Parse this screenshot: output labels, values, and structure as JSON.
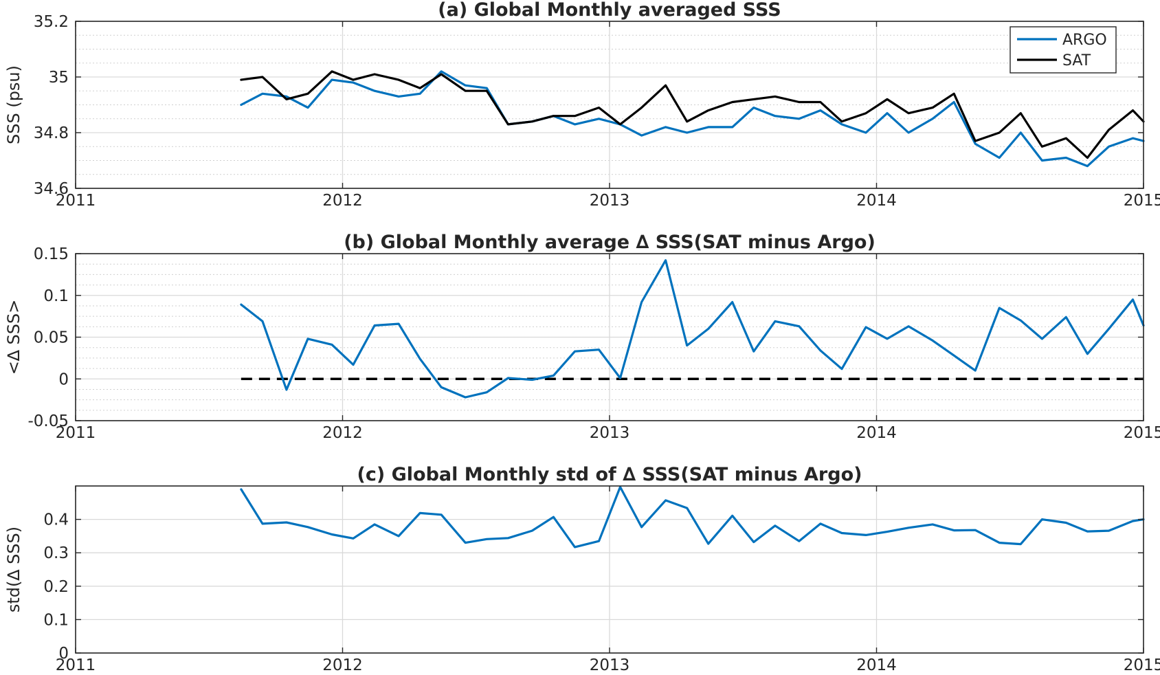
{
  "chart_data": [
    {
      "type": "line",
      "title": "(a) Global Monthly averaged SSS",
      "xlabel": "",
      "ylabel": "SSS (psu)",
      "xlim": [
        2011,
        2015
      ],
      "ylim": [
        34.6,
        35.2
      ],
      "xticks": [
        2011,
        2012,
        2013,
        2014,
        2015
      ],
      "xtick_labels": [
        "2011",
        "2012",
        "2013",
        "2014",
        "2015"
      ],
      "yticks": [
        34.6,
        34.8,
        35,
        35.2
      ],
      "ytick_labels": [
        "34.6",
        "34.8",
        "35",
        "35.2"
      ],
      "grid": true,
      "legend_position": "top-right",
      "x": [
        2011.62,
        2011.7,
        2011.79,
        2011.87,
        2011.96,
        2012.04,
        2012.12,
        2012.21,
        2012.29,
        2012.37,
        2012.46,
        2012.54,
        2012.62,
        2012.71,
        2012.79,
        2012.87,
        2012.96,
        2013.04,
        2013.12,
        2013.21,
        2013.29,
        2013.37,
        2013.46,
        2013.54,
        2013.62,
        2013.71,
        2013.79,
        2013.87,
        2013.96,
        2014.04,
        2014.12,
        2014.21,
        2014.29,
        2014.37,
        2014.46,
        2014.54,
        2014.62,
        2014.71,
        2014.79,
        2014.87,
        2014.96,
        2015.0
      ],
      "series": [
        {
          "name": "ARGO",
          "color": "#0072BD",
          "values": [
            34.9,
            34.94,
            34.93,
            34.89,
            34.99,
            34.98,
            34.95,
            34.93,
            34.94,
            35.02,
            34.97,
            34.96,
            34.83,
            34.84,
            34.86,
            34.83,
            34.85,
            34.83,
            34.79,
            34.82,
            34.8,
            34.82,
            34.82,
            34.89,
            34.86,
            34.85,
            34.88,
            34.83,
            34.8,
            34.87,
            34.8,
            34.85,
            34.91,
            34.76,
            34.71,
            34.8,
            34.7,
            34.71,
            34.68,
            34.75,
            34.78,
            34.77
          ]
        },
        {
          "name": "SAT",
          "color": "#000000",
          "values": [
            34.99,
            35.0,
            34.92,
            34.94,
            35.02,
            34.99,
            35.01,
            34.99,
            34.96,
            35.01,
            34.95,
            34.95,
            34.83,
            34.84,
            34.86,
            34.86,
            34.89,
            34.83,
            34.89,
            34.97,
            34.84,
            34.88,
            34.91,
            34.92,
            34.93,
            34.91,
            34.91,
            34.84,
            34.87,
            34.92,
            34.87,
            34.89,
            34.94,
            34.77,
            34.8,
            34.87,
            34.75,
            34.78,
            34.71,
            34.81,
            34.88,
            34.84
          ]
        }
      ]
    },
    {
      "type": "line",
      "title": "(b) Global Monthly average ∆ SSS(SAT minus Argo)",
      "xlabel": "",
      "ylabel": "<∆ SSS>",
      "xlim": [
        2011,
        2015
      ],
      "ylim": [
        -0.05,
        0.15
      ],
      "xticks": [
        2011,
        2012,
        2013,
        2014,
        2015
      ],
      "xtick_labels": [
        "2011",
        "2012",
        "2013",
        "2014",
        "2015"
      ],
      "yticks": [
        -0.05,
        0,
        0.05,
        0.1,
        0.15
      ],
      "ytick_labels": [
        "-0.05",
        "0",
        "0.05",
        "0.1",
        "0.15"
      ],
      "grid": true,
      "zero_line": {
        "y": 0,
        "x_start": 2011.62,
        "x_end": 2015.0,
        "color": "#000000",
        "style": "dashed"
      },
      "x": [
        2011.62,
        2011.7,
        2011.79,
        2011.87,
        2011.96,
        2012.04,
        2012.12,
        2012.21,
        2012.29,
        2012.37,
        2012.46,
        2012.54,
        2012.62,
        2012.71,
        2012.79,
        2012.87,
        2012.96,
        2013.04,
        2013.12,
        2013.21,
        2013.29,
        2013.37,
        2013.46,
        2013.54,
        2013.62,
        2013.71,
        2013.79,
        2013.87,
        2013.96,
        2014.04,
        2014.12,
        2014.21,
        2014.29,
        2014.37,
        2014.46,
        2014.54,
        2014.62,
        2014.71,
        2014.79,
        2014.87,
        2014.96,
        2015.0
      ],
      "series": [
        {
          "name": "",
          "color": "#0072BD",
          "values": [
            0.089,
            0.069,
            -0.013,
            0.048,
            0.041,
            0.017,
            0.064,
            0.066,
            0.024,
            -0.01,
            -0.022,
            -0.016,
            0.001,
            -0.001,
            0.004,
            0.033,
            0.035,
            0.001,
            0.092,
            0.142,
            0.04,
            0.06,
            0.092,
            0.033,
            0.069,
            0.063,
            0.034,
            0.012,
            0.062,
            0.048,
            0.063,
            0.046,
            0.028,
            0.01,
            0.085,
            0.07,
            0.048,
            0.074,
            0.03,
            0.06,
            0.095,
            0.064
          ]
        }
      ]
    },
    {
      "type": "line",
      "title": "(c) Global Monthly std of ∆ SSS(SAT minus Argo)",
      "xlabel": "",
      "ylabel": "std(∆ SSS)",
      "xlim": [
        2011,
        2015
      ],
      "ylim": [
        0,
        0.5
      ],
      "xticks": [
        2011,
        2012,
        2013,
        2014,
        2015
      ],
      "xtick_labels": [
        "2011",
        "2012",
        "2013",
        "2014",
        "2015"
      ],
      "yticks": [
        0,
        0.1,
        0.2,
        0.3,
        0.4
      ],
      "ytick_labels": [
        "0",
        "0.1",
        "0.2",
        "0.3",
        "0.4"
      ],
      "grid": true,
      "x": [
        2011.62,
        2011.7,
        2011.79,
        2011.87,
        2011.96,
        2012.04,
        2012.12,
        2012.21,
        2012.29,
        2012.37,
        2012.46,
        2012.54,
        2012.62,
        2012.71,
        2012.79,
        2012.87,
        2012.96,
        2013.04,
        2013.12,
        2013.21,
        2013.29,
        2013.37,
        2013.46,
        2013.54,
        2013.62,
        2013.71,
        2013.79,
        2013.87,
        2013.96,
        2014.04,
        2014.12,
        2014.21,
        2014.29,
        2014.37,
        2014.46,
        2014.54,
        2014.62,
        2014.71,
        2014.79,
        2014.87,
        2014.96,
        2015.0
      ],
      "series": [
        {
          "name": "",
          "color": "#0072BD",
          "values": [
            0.49,
            0.387,
            0.391,
            0.377,
            0.355,
            0.343,
            0.385,
            0.35,
            0.419,
            0.414,
            0.33,
            0.341,
            0.344,
            0.366,
            0.407,
            0.317,
            0.335,
            0.497,
            0.377,
            0.457,
            0.434,
            0.327,
            0.411,
            0.332,
            0.381,
            0.335,
            0.387,
            0.359,
            0.353,
            0.363,
            0.375,
            0.385,
            0.367,
            0.368,
            0.33,
            0.326,
            0.4,
            0.39,
            0.364,
            0.366,
            0.395,
            0.4
          ]
        }
      ]
    }
  ]
}
